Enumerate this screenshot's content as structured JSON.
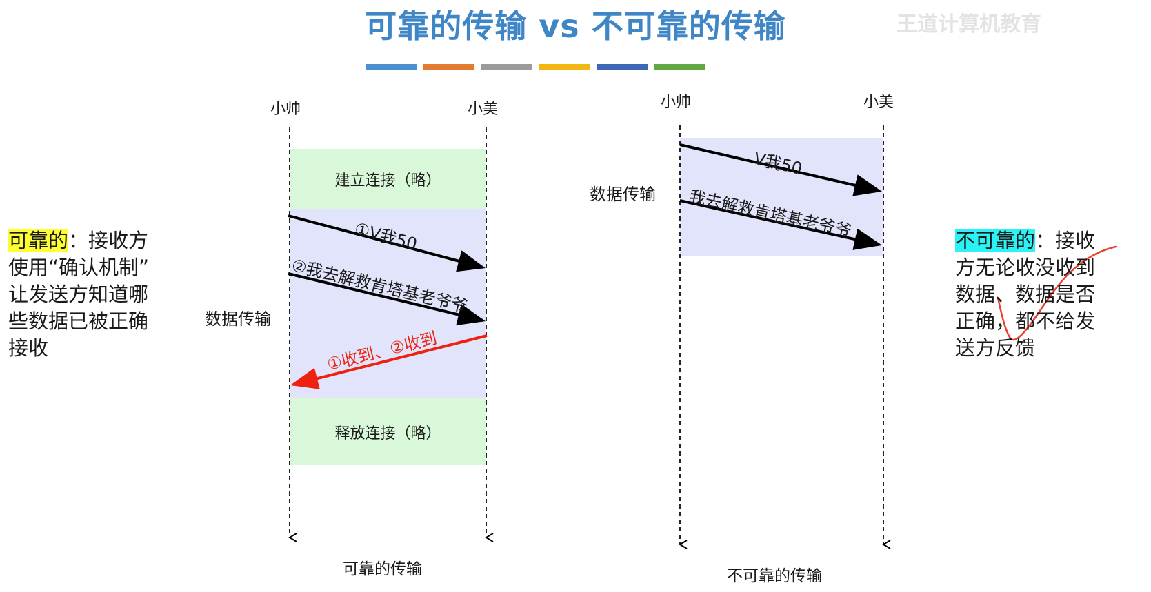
{
  "title": "可靠的传输 vs 不可靠的传输",
  "watermark": "王道计算机教育",
  "colors": {
    "title": "#3f86c6",
    "palette": [
      "#4a8fcf",
      "#e37a30",
      "#9b9b9b",
      "#f3b713",
      "#3e67b8",
      "#61a845"
    ],
    "phase_green": "#d9f7d9",
    "data_blue": "#e2e4fc",
    "arrow_black": "#000000",
    "arrow_red": "#ee2211",
    "check_red": "#e6422f",
    "highlight_yellow": "#fffe35",
    "highlight_cyan": "#2bf3f5"
  },
  "reliable": {
    "sender": "小帅",
    "receiver": "小美",
    "setup_phase": "建立连接（略）",
    "data_label": "数据传输",
    "msg1": "①V我50",
    "msg2": "②我去解救肯塔基老爷爷",
    "ack": "①收到、②收到",
    "release_phase": "释放连接（略）",
    "caption": "可靠的传输"
  },
  "unreliable": {
    "sender": "小帅",
    "receiver": "小美",
    "data_label": "数据传输",
    "msg1": "V我50",
    "msg2": "我去解救肯塔基老爷爷",
    "caption": "不可靠的传输"
  },
  "left_note": {
    "term": "可靠的",
    "colon": "：",
    "line1_rest": "接收方",
    "line2": "使用“确认机制”",
    "line3": "让发送方知道哪",
    "line4": "些数据已被正确",
    "line5": "接收"
  },
  "right_note": {
    "term": "不可靠的",
    "colon": "：",
    "line1_rest": "接收",
    "line2": "方无论收没收到",
    "line3": "数据、数据是否",
    "line4": "正确，都不给发",
    "line5": "送方反馈"
  }
}
